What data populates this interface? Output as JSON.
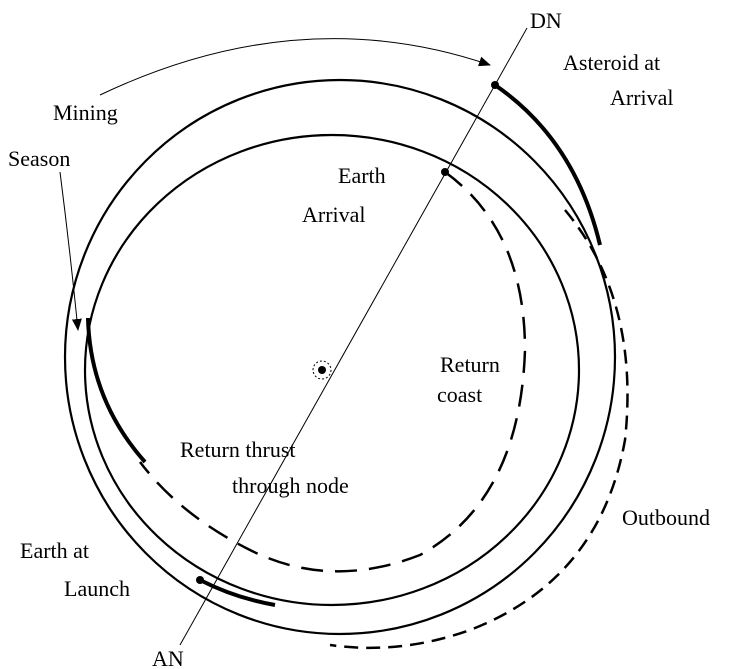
{
  "labels": {
    "dn": "DN",
    "asteroid_at_arrival": [
      "Asteroid at",
      "Arrival"
    ],
    "mining_season": [
      "Mining",
      "Season"
    ],
    "earth_arrival": [
      "Earth",
      "Arrival"
    ],
    "return_coast": [
      "Return",
      "coast"
    ],
    "return_thrust": [
      "Return thrust",
      "through node"
    ],
    "outbound": "Outbound",
    "earth_at_launch": [
      "Earth at",
      "Launch"
    ],
    "an": "AN"
  }
}
